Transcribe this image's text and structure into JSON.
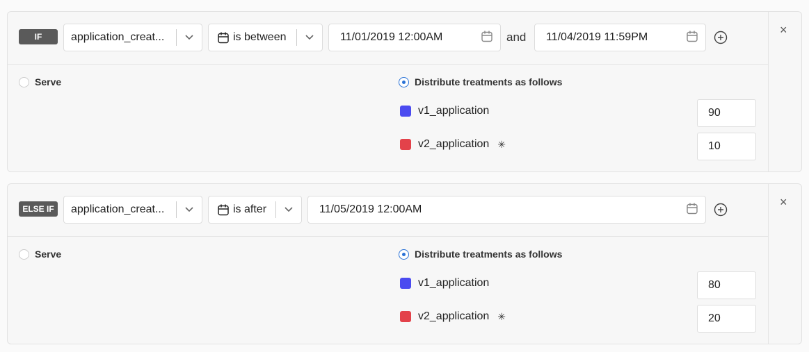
{
  "rules": [
    {
      "badge": "IF",
      "attribute": "application_creat...",
      "operator": "is between",
      "date_from": "11/01/2019 12:00AM",
      "joiner": "and",
      "date_to": "11/04/2019 11:59PM",
      "serve_label": "Serve",
      "distribute_label": "Distribute treatments as follows",
      "distribute_selected": true,
      "treatments": [
        {
          "name": "v1_application",
          "color": "#4b4bf0",
          "value": "90"
        },
        {
          "name": "v2_application",
          "color": "#e3424a",
          "value": "10"
        }
      ]
    },
    {
      "badge": "ELSE IF",
      "attribute": "application_creat...",
      "operator": "is after",
      "date_from": "11/05/2019 12:00AM",
      "serve_label": "Serve",
      "distribute_label": "Distribute treatments as follows",
      "distribute_selected": true,
      "treatments": [
        {
          "name": "v1_application",
          "color": "#4b4bf0",
          "value": "80"
        },
        {
          "name": "v2_application",
          "color": "#e3424a",
          "value": "20"
        }
      ]
    }
  ],
  "icons": {
    "close": "×",
    "star": "✳"
  }
}
